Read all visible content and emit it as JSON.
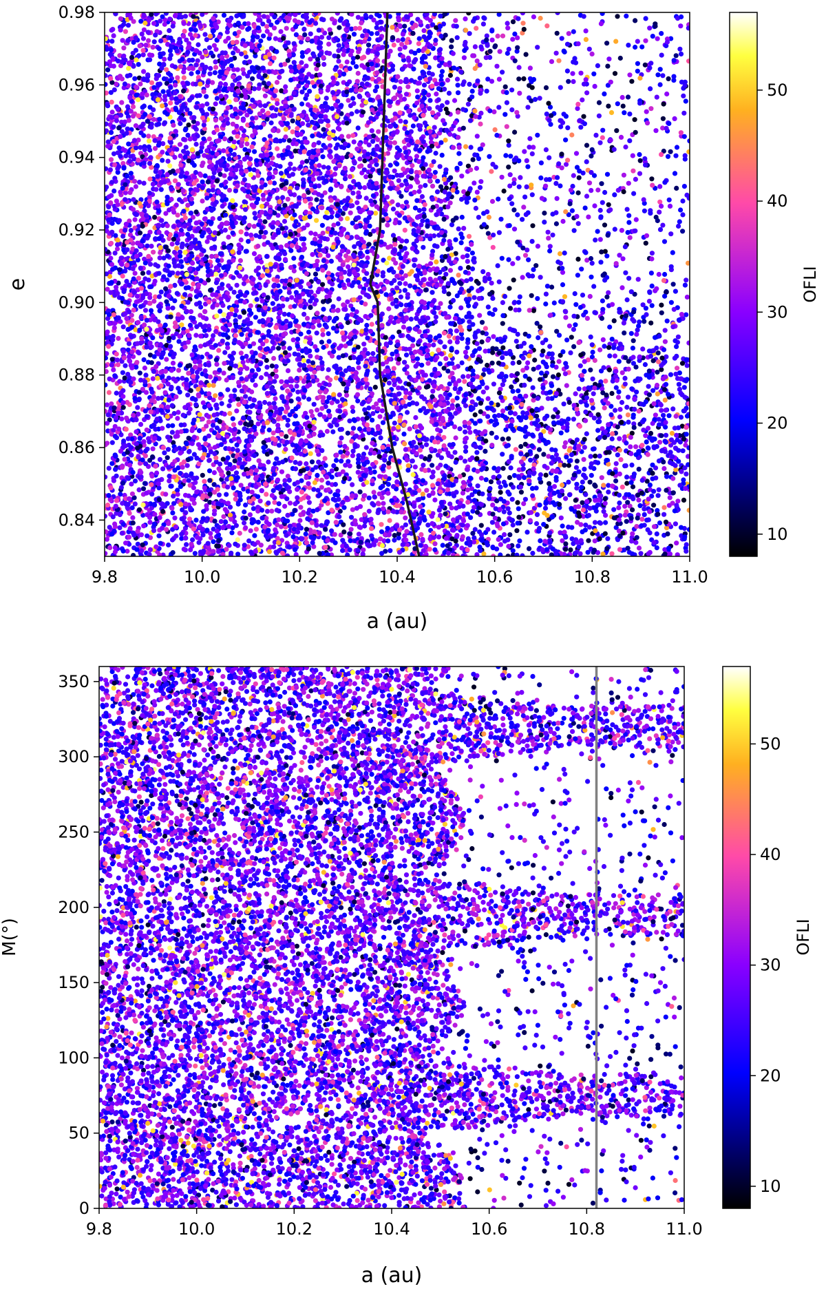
{
  "chart_data": [
    {
      "type": "scatter",
      "panel": "top",
      "xlabel": "a (au)",
      "ylabel": "e",
      "xlim": [
        9.8,
        11.0
      ],
      "ylim": [
        0.83,
        0.98
      ],
      "xticks": [
        9.8,
        10.0,
        10.2,
        10.4,
        10.6,
        10.8,
        11.0
      ],
      "xtick_labels": [
        "9.8",
        "10.0",
        "10.2",
        "10.4",
        "10.6",
        "10.8",
        "11.0"
      ],
      "yticks": [
        0.84,
        0.86,
        0.88,
        0.9,
        0.92,
        0.94,
        0.96,
        0.98
      ],
      "ytick_labels": [
        "0.84",
        "0.86",
        "0.88",
        "0.90",
        "0.92",
        "0.94",
        "0.96",
        "0.98"
      ],
      "colorbar": {
        "label": "OFLI",
        "range": [
          8,
          57
        ],
        "ticks": [
          10,
          20,
          30,
          40,
          50
        ],
        "tick_labels": [
          "10",
          "20",
          "30",
          "40",
          "50"
        ],
        "colormap": "gnuplot2",
        "colors": [
          "#000000",
          "#0000ff",
          "#8a00ff",
          "#ff4aa8",
          "#ffb020",
          "#ffff40",
          "#ffffff"
        ]
      },
      "curve": {
        "name": "boundary curve",
        "color": "#1a1a1a",
        "points": [
          [
            10.38,
            0.98
          ],
          [
            10.375,
            0.96
          ],
          [
            10.37,
            0.94
          ],
          [
            10.365,
            0.92
          ],
          [
            10.345,
            0.905
          ],
          [
            10.36,
            0.9
          ],
          [
            10.365,
            0.88
          ],
          [
            10.39,
            0.86
          ],
          [
            10.42,
            0.845
          ],
          [
            10.445,
            0.83
          ]
        ]
      },
      "scatter_description": "dense chaotic particle field with OFLI coloring; sparse region at a > 10.55, e > 0.88"
    },
    {
      "type": "scatter",
      "panel": "bottom",
      "xlabel": "a (au)",
      "ylabel": "M(°)",
      "xlim": [
        9.8,
        11.0
      ],
      "ylim": [
        0,
        360
      ],
      "xticks": [
        9.8,
        10.0,
        10.2,
        10.4,
        10.6,
        10.8,
        11.0
      ],
      "xtick_labels": [
        "9.8",
        "10.0",
        "10.2",
        "10.4",
        "10.6",
        "10.8",
        "11.0"
      ],
      "yticks": [
        0,
        50,
        100,
        150,
        200,
        250,
        300,
        350
      ],
      "ytick_labels": [
        "0",
        "50",
        "100",
        "150",
        "200",
        "250",
        "300",
        "350"
      ],
      "colorbar": {
        "label": "OFLI",
        "range": [
          8,
          57
        ],
        "ticks": [
          10,
          20,
          30,
          40,
          50
        ],
        "tick_labels": [
          "10",
          "20",
          "30",
          "40",
          "50"
        ],
        "colormap": "gnuplot2",
        "colors": [
          "#000000",
          "#0000ff",
          "#8a00ff",
          "#ff4aa8",
          "#ffb020",
          "#ffff40",
          "#ffffff"
        ]
      },
      "vline": {
        "name": "reference line",
        "x": 10.82,
        "color": "#808080"
      },
      "gaps_M": [
        [
          20,
          65
        ],
        [
          100,
          180
        ],
        [
          210,
          300
        ],
        [
          330,
          360
        ]
      ],
      "bands_M": [
        75,
        195,
        320
      ],
      "scatter_description": "dense field at a < 10.5; resonance bands at M ≈ 75, 195, 320 with empty islands between for a > 10.5"
    }
  ]
}
